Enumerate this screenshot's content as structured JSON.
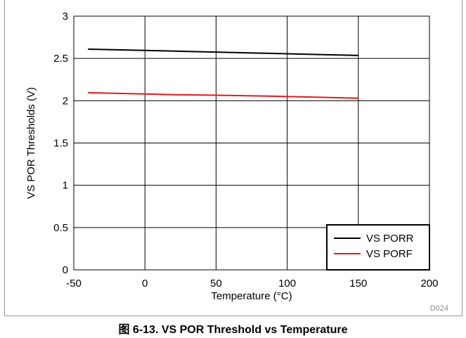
{
  "chart_data": {
    "type": "line",
    "title": "",
    "xlabel": "Temperature (°C)",
    "ylabel": "VS POR Thresholds (V)",
    "xlim": [
      -50,
      200
    ],
    "ylim": [
      0,
      3
    ],
    "xticks": [
      -50,
      0,
      50,
      100,
      150,
      200
    ],
    "yticks": [
      0,
      0.5,
      1,
      1.5,
      2,
      2.5,
      3
    ],
    "xtick_labels": [
      "-50",
      "0",
      "50",
      "100",
      "150",
      "200"
    ],
    "ytick_labels": [
      "0",
      "0.5",
      "1",
      "1.5",
      "2",
      "2.5",
      "3"
    ],
    "grid": true,
    "legend_position": "bottom-right",
    "series": [
      {
        "name": "VS PORR",
        "color": "#000000",
        "x": [
          -40,
          0,
          25,
          50,
          75,
          100,
          125,
          150
        ],
        "y": [
          2.61,
          2.595,
          2.585,
          2.575,
          2.565,
          2.555,
          2.545,
          2.535
        ]
      },
      {
        "name": "VS PORF",
        "color": "#e31a1c",
        "x": [
          -40,
          0,
          25,
          50,
          75,
          100,
          125,
          150
        ],
        "y": [
          2.095,
          2.08,
          2.07,
          2.065,
          2.058,
          2.05,
          2.04,
          2.03
        ]
      }
    ],
    "tag": "D024"
  },
  "caption": "图 6-13. VS POR Threshold vs Temperature"
}
